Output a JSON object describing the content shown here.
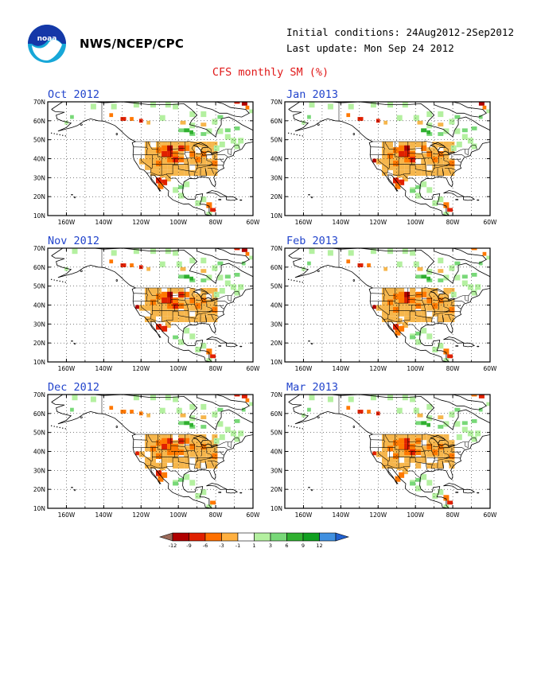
{
  "header": {
    "org": "NWS/NCEP/CPC",
    "initial_conditions": "Initial conditions: 24Aug2012-2Sep2012",
    "last_update": "Last update: Mon Sep 24 2012",
    "title": "CFS monthly SM (%)"
  },
  "logo": {
    "text": "noaa",
    "icon": "noaa-logo-icon"
  },
  "axes": {
    "lat_labels": [
      "70N",
      "60N",
      "50N",
      "40N",
      "30N",
      "20N",
      "10N"
    ],
    "lon_labels": [
      "160W",
      "140W",
      "120W",
      "100W",
      "80W",
      "60W"
    ]
  },
  "panels": [
    {
      "label": "Oct 2012"
    },
    {
      "label": "Jan 2013"
    },
    {
      "label": "Nov 2012"
    },
    {
      "label": "Feb 2013"
    },
    {
      "label": "Dec 2012"
    },
    {
      "label": "Mar 2013"
    }
  ],
  "colorbar": {
    "ticks": [
      "-12",
      "-9",
      "-6",
      "-3",
      "-1",
      "1",
      "3",
      "6",
      "9",
      "12"
    ],
    "colors": [
      "#9b6a5a",
      "#b00000",
      "#e02000",
      "#ff7000",
      "#ffb040",
      "#ffffff",
      "#b4f0a0",
      "#78d878",
      "#30b030",
      "#10a020",
      "#4090e0",
      "#2060d0"
    ]
  },
  "palette": {
    "dry_light": "#f6b64c",
    "dry_orange": "#ff7800",
    "dry_red": "#e02000",
    "dry_dark": "#b00000",
    "wet_light": "#b4f0a0",
    "wet_mid": "#78d878",
    "wet_dark": "#30b030",
    "wet_blue": "#4090e0",
    "title_red": "#e01818",
    "panel_title_blue": "#2244cc"
  }
}
